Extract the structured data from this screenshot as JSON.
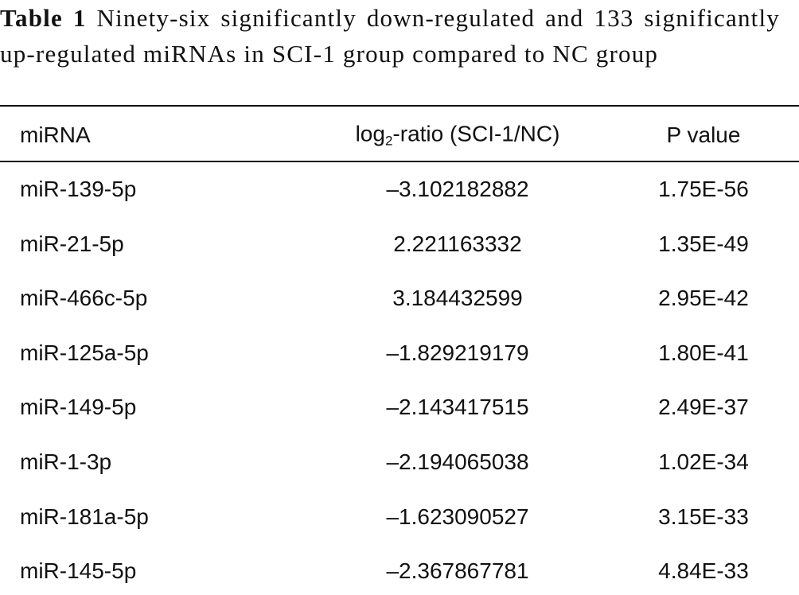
{
  "caption": {
    "label": "Table 1",
    "text": "Ninety-six significantly down-regulated and 133 significantly up-regulated miRNAs in SCI-1 group compared to NC group"
  },
  "table": {
    "header": {
      "mirna": "miRNA",
      "ratio": {
        "base": "log",
        "subscript": "2",
        "rest": "-ratio (SCI-1/NC)"
      },
      "p": "P value"
    },
    "rows": [
      [
        "miR-139-5p",
        "–3.102182882",
        "1.75E-56"
      ],
      [
        "miR-21-5p",
        "2.221163332",
        "1.35E-49"
      ],
      [
        "miR-466c-5p",
        "3.184432599",
        "2.95E-42"
      ],
      [
        "miR-125a-5p",
        "–1.829219179",
        "1.80E-41"
      ],
      [
        "miR-149-5p",
        "–2.143417515",
        "2.49E-37"
      ],
      [
        "miR-1-3p",
        "–2.194065038",
        "1.02E-34"
      ],
      [
        "miR-181a-5p",
        "–1.623090527",
        "3.15E-33"
      ],
      [
        "miR-145-5p",
        "–2.367867781",
        "4.84E-33"
      ]
    ]
  }
}
